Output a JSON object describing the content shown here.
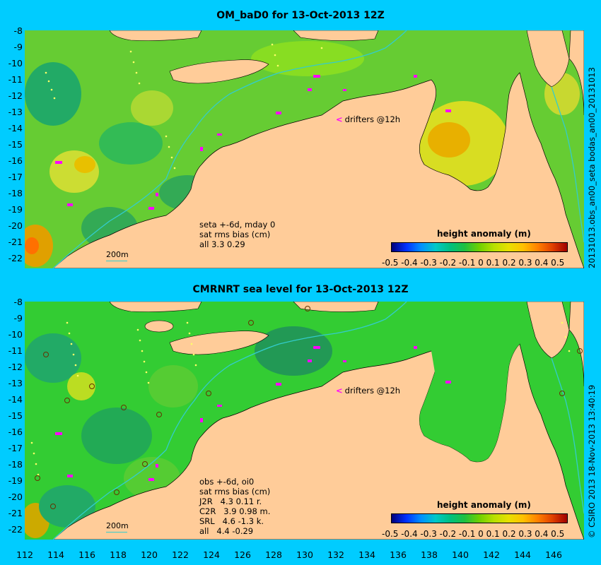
{
  "top": {
    "title": "OM_baD0 for 13-Oct-2013 12Z",
    "y_ticks": [
      "-8",
      "-9",
      "-10",
      "-11",
      "-12",
      "-13",
      "-14",
      "-15",
      "-16",
      "-17",
      "-18",
      "-19",
      "-20",
      "-21",
      "-22"
    ],
    "side_label": "20131013.obs_an00_seta          bodas_an00_20131013",
    "info": [
      "seta +-6d, mday 0",
      "sat rms bias (cm)",
      "all 3.3 0.29"
    ],
    "drifters": "drifters @12h",
    "scale": "200m",
    "cbar_title": "height anomaly (m)",
    "cbar_ticks": "-0.5 -0.4 -0.3 -0.2 -0.1   0   0.1  0.2  0.3  0.4  0.5"
  },
  "bottom": {
    "title": "CMRNRT sea level  for 13-Oct-2013 12Z",
    "y_ticks": [
      "-8",
      "-9",
      "-10",
      "-11",
      "-12",
      "-13",
      "-14",
      "-15",
      "-16",
      "-17",
      "-18",
      "-19",
      "-20",
      "-21",
      "-22"
    ],
    "side_label": "© CSIRO 2013   18-Nov-2013 13:40:19",
    "info": [
      "obs +-6d, oi0",
      "sat rms bias (cm)",
      "J2R   4.3 0.11 r.",
      "C2R   3.9 0.98 m.",
      "SRL   4.6 -1.3 k.",
      "all   4.4 -0.29"
    ],
    "drifters": "drifters @12h",
    "scale": "200m",
    "cbar_title": "height anomaly (m)",
    "cbar_ticks": "-0.5 -0.4 -0.3 -0.2 -0.1   0   0.1  0.2  0.3  0.4  0.5"
  },
  "x_ticks": [
    "112",
    "114",
    "116",
    "118",
    "120",
    "122",
    "124",
    "126",
    "128",
    "130",
    "132",
    "134",
    "136",
    "138",
    "140",
    "142",
    "144",
    "146"
  ],
  "colors": {
    "background": "#00ccff",
    "land": "#ffcc99",
    "ocean": "#66cc33",
    "drifter": "#ff00ff",
    "isobath": "#33cccc"
  }
}
